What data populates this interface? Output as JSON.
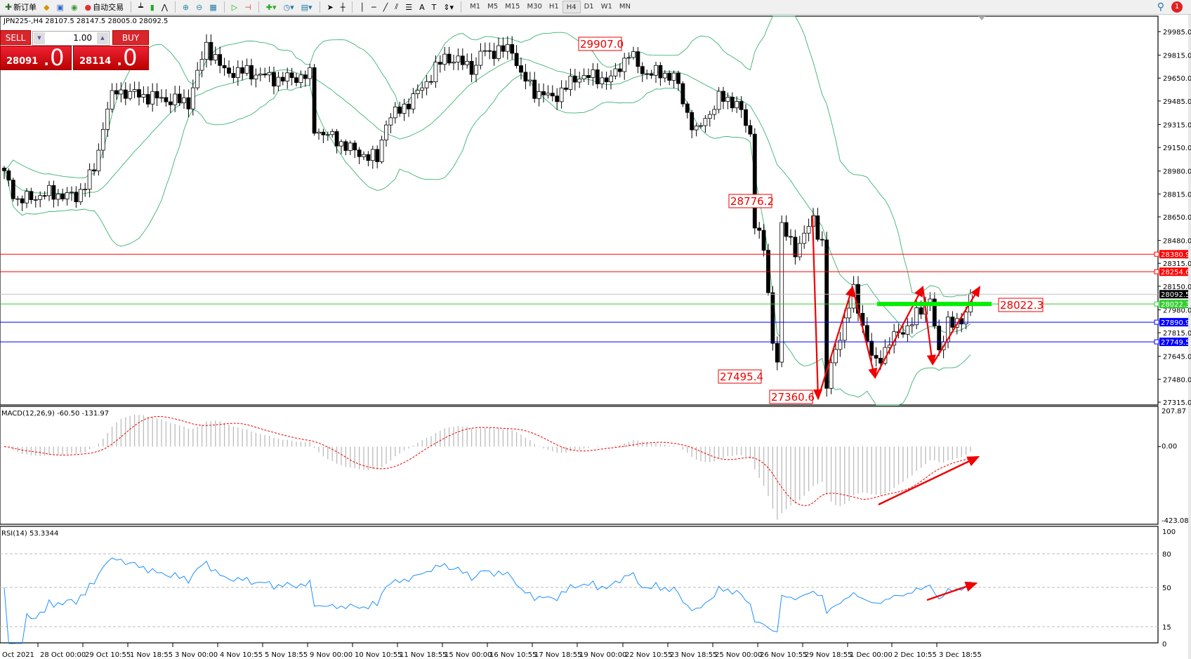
{
  "toolbar": {
    "new_order": "新订单",
    "auto_trading": "自动交易",
    "timeframes": [
      "M1",
      "M5",
      "M15",
      "M30",
      "H1",
      "H4",
      "D1",
      "W1",
      "MN"
    ],
    "selected_timeframe": "H4",
    "notification_count": "1"
  },
  "chart": {
    "title": "JPN225-,H4  28107.5 28147.5 28005.0 28092.5",
    "price_ticks": [
      "29985.0",
      "29815.0",
      "29650.0",
      "29485.0",
      "29315.0",
      "29150.0",
      "28980.0",
      "28815.0",
      "28650.0",
      "28480.0",
      "28315.0",
      "28150.0",
      "27980.0",
      "27815.0",
      "27645.0",
      "27480.0",
      "27315.0"
    ],
    "price_range": [
      27315,
      29985
    ],
    "hlines": [
      {
        "value": "28380.9",
        "color": "#ff0000"
      },
      {
        "value": "28254.6",
        "color": "#ff0000"
      },
      {
        "value": "28092.5",
        "color": "#000000",
        "line": "#c0c0c0"
      },
      {
        "value": "28022.3",
        "color": "#32cd32"
      },
      {
        "value": "27890.9",
        "color": "#0000ff"
      },
      {
        "value": "27749.5",
        "color": "#0000ff"
      }
    ],
    "annotations": [
      "29907.0",
      "28776.2",
      "27495.4",
      "27360.6",
      "28022.3"
    ],
    "price_path": [
      [
        0,
        28957
      ],
      [
        3,
        28765
      ],
      [
        10,
        28820
      ],
      [
        16,
        28792
      ],
      [
        20,
        28984
      ],
      [
        23,
        29449
      ],
      [
        25,
        29558
      ],
      [
        34,
        29504
      ],
      [
        41,
        29476
      ],
      [
        45,
        29887
      ],
      [
        49,
        29695
      ],
      [
        54,
        29695
      ],
      [
        61,
        29640
      ],
      [
        68,
        29668
      ],
      [
        69,
        29285
      ],
      [
        74,
        29203
      ],
      [
        78,
        29120
      ],
      [
        83,
        29066
      ],
      [
        85,
        29339
      ],
      [
        91,
        29504
      ],
      [
        95,
        29668
      ],
      [
        98,
        29804
      ],
      [
        105,
        29722
      ],
      [
        106,
        29832
      ],
      [
        113,
        29859
      ],
      [
        115,
        29668
      ],
      [
        118,
        29558
      ],
      [
        122,
        29504
      ],
      [
        128,
        29668
      ],
      [
        135,
        29640
      ],
      [
        139,
        29832
      ],
      [
        142,
        29695
      ],
      [
        149,
        29668
      ],
      [
        152,
        29394
      ],
      [
        154,
        29257
      ],
      [
        159,
        29504
      ],
      [
        163,
        29476
      ],
      [
        166,
        29230
      ],
      [
        167,
        28628
      ],
      [
        169,
        28409
      ],
      [
        171,
        27753
      ],
      [
        172,
        27643
      ],
      [
        173,
        28573
      ],
      [
        176,
        28409
      ],
      [
        180,
        28628
      ],
      [
        182,
        28464
      ],
      [
        183,
        27425
      ],
      [
        185,
        27698
      ],
      [
        189,
        28109
      ],
      [
        193,
        27643
      ],
      [
        194,
        27589
      ],
      [
        197,
        27753
      ],
      [
        201,
        27862
      ],
      [
        204,
        27972
      ],
      [
        206,
        28081
      ],
      [
        208,
        27643
      ],
      [
        210,
        27917
      ],
      [
        213,
        27862
      ],
      [
        215,
        28092.5
      ]
    ],
    "band_color": "#3cb371"
  },
  "trade": {
    "sell": "SELL",
    "buy": "BUY",
    "lot": "1.00",
    "sell_main": "28091",
    "sell_big": ".0",
    "buy_main": "28114",
    "buy_big": ".0"
  },
  "macd": {
    "label": "MACD(12,26,9) -60.50 -131.97",
    "max": "207.87",
    "zero": "0.00",
    "min": "-423.08"
  },
  "rsi": {
    "label": "RSI(14) 53.3344",
    "ticks": [
      "100",
      "80",
      "50",
      "15",
      "0"
    ]
  },
  "time_axis": [
    "Oct 2021",
    "28 Oct 00:00",
    "29 Oct 10:55",
    "1 Nov 18:55",
    "3 Nov 00:00",
    "4 Nov 10:55",
    "5 Nov 18:55",
    "9 Nov 00:00",
    "10 Nov 10:55",
    "11 Nov 18:55",
    "15 Nov 00:00",
    "16 Nov 10:55",
    "17 Nov 18:55",
    "19 Nov 00:00",
    "22 Nov 10:55",
    "23 Nov 18:55",
    "25 Nov 00:00",
    "26 Nov 10:55",
    "29 Nov 18:55",
    "1 Dec 00:00",
    "2 Dec 10:55",
    "3 Dec 18:55"
  ]
}
